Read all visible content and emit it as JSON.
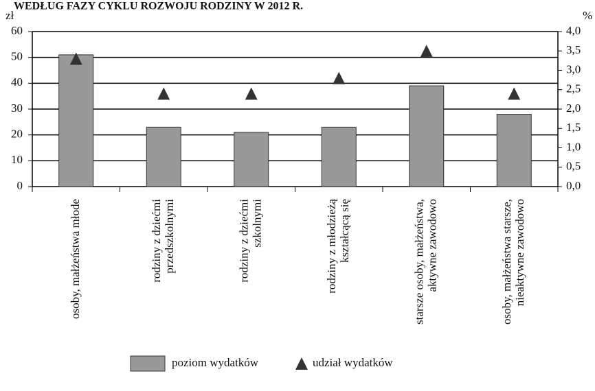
{
  "chart_data": {
    "type": "bar",
    "title": "WEDŁUG FAZY CYKLU ROZWOJU RODZINY W 2012 R.",
    "ylabel": "zł",
    "y2label": "%",
    "categories": [
      "osoby, małżeństwa młode",
      "rodziny z dziećmi\nprzedszkolnymi",
      "rodziny z dziećmi\nszkolnymi",
      "rodziny z młodzieżą\nkształcącą się",
      "starsze osoby, małżeństwa,\naktywne zawodowo",
      "osoby, małżeństwa starsze,\nnieaktywne zawodowo"
    ],
    "series": [
      {
        "name": "poziom wydatków",
        "type": "bar",
        "color": "#999999",
        "values": [
          51,
          23,
          21,
          23,
          39,
          28
        ]
      },
      {
        "name": "udział wydatków",
        "type": "marker",
        "axis": "y2",
        "color": "#333333",
        "values": [
          3.3,
          2.4,
          2.4,
          2.8,
          3.5,
          2.4
        ]
      }
    ],
    "ylim": [
      0,
      60
    ],
    "yticks": [
      0,
      10,
      20,
      30,
      40,
      50,
      60
    ],
    "y2lim": [
      0,
      4
    ],
    "y2ticks": [
      {
        "value": 0,
        "label": "0,0"
      },
      {
        "value": 0.5,
        "label": "0,5"
      },
      {
        "value": 1,
        "label": "1,0"
      },
      {
        "value": 1.5,
        "label": "1,5"
      },
      {
        "value": 2,
        "label": "2,0"
      },
      {
        "value": 2.5,
        "label": "2,5"
      },
      {
        "value": 3,
        "label": "3,0"
      },
      {
        "value": 3.5,
        "label": "3,5"
      },
      {
        "value": 4,
        "label": "4,0"
      }
    ],
    "grid": true,
    "legend": "bottom"
  }
}
